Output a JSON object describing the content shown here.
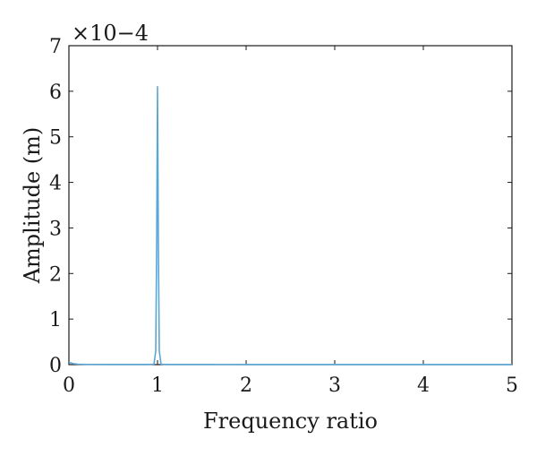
{
  "chart_data": {
    "type": "line",
    "title": "",
    "xlabel": "Frequency ratio",
    "ylabel": "Amplitude (m)",
    "xlim": [
      0,
      5
    ],
    "ylim": [
      0,
      7
    ],
    "y_multiplier": "×10−4",
    "grid": false,
    "xticks": [
      0,
      1,
      2,
      3,
      4,
      5
    ],
    "yticks": [
      0,
      1,
      2,
      3,
      4,
      5,
      6,
      7
    ],
    "xtick_labels": [
      "0",
      "1",
      "2",
      "3",
      "4",
      "5"
    ],
    "ytick_labels": [
      "0",
      "1",
      "2",
      "3",
      "4",
      "5",
      "6",
      "7"
    ],
    "line_color": "#5aa7d6",
    "series": [
      {
        "x": [
          0.0,
          0.02,
          0.05,
          0.1,
          0.2,
          0.5,
          0.9,
          0.96,
          0.98,
          0.99,
          1.0,
          1.01,
          1.02,
          1.04,
          1.1,
          1.5,
          2.0,
          3.0,
          4.0,
          5.0
        ],
        "y": [
          0.05,
          0.04,
          0.02,
          0.01,
          0.005,
          0.004,
          0.004,
          0.01,
          0.3,
          2.5,
          6.1,
          2.5,
          0.3,
          0.01,
          0.004,
          0.003,
          0.002,
          0.002,
          0.002,
          0.002
        ]
      }
    ]
  }
}
